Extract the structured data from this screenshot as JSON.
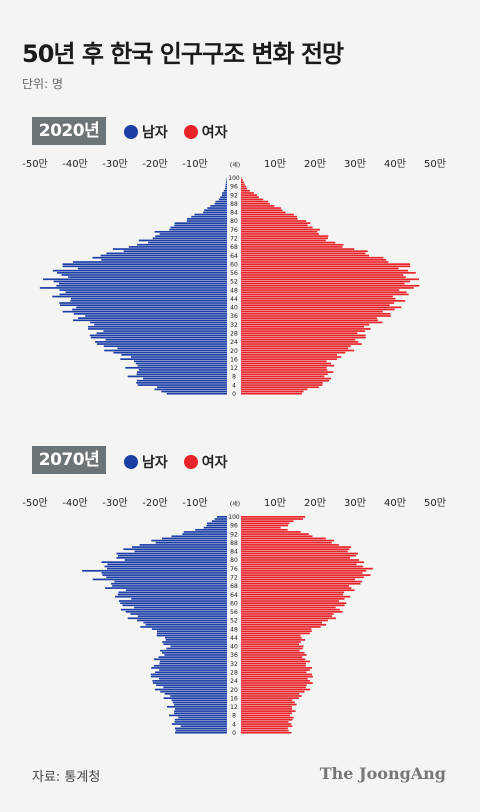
{
  "title": "50년 후 한국 인구구조 변화 전망",
  "unit": "단위: 명",
  "legend": {
    "male": "남자",
    "female": "여자"
  },
  "colors": {
    "male": "#1c3fa6",
    "female": "#e8232a",
    "badge": "#6c7478"
  },
  "source": "자료: 통계청",
  "brand": "The JoongAng",
  "chart_data": [
    {
      "type": "bar",
      "label": "2020년",
      "x_ticks": [
        "-50만",
        "-40만",
        "-30만",
        "-20만",
        "-10만",
        "(세)",
        "10만",
        "20만",
        "30만",
        "40만",
        "50만"
      ],
      "xlim": [
        -500000,
        500000
      ],
      "age_ticks": [
        "100",
        "96",
        "92",
        "88",
        "84",
        "80",
        "76",
        "72",
        "68",
        "64",
        "60",
        "56",
        "52",
        "48",
        "44",
        "40",
        "36",
        "32",
        "28",
        "24",
        "20",
        "16",
        "12",
        "8",
        "4",
        "0"
      ],
      "age_keypoints": [
        [
          0,
          145000,
          145000
        ],
        [
          5,
          225000,
          215000
        ],
        [
          10,
          230000,
          220000
        ],
        [
          15,
          235000,
          225000
        ],
        [
          20,
          290000,
          270000
        ],
        [
          25,
          330000,
          300000
        ],
        [
          30,
          330000,
          310000
        ],
        [
          35,
          370000,
          355000
        ],
        [
          40,
          400000,
          385000
        ],
        [
          45,
          410000,
          395000
        ],
        [
          50,
          440000,
          430000
        ],
        [
          55,
          420000,
          420000
        ],
        [
          60,
          400000,
          410000
        ],
        [
          63,
          320000,
          340000
        ],
        [
          65,
          300000,
          320000
        ],
        [
          70,
          210000,
          230000
        ],
        [
          75,
          165000,
          195000
        ],
        [
          80,
          110000,
          160000
        ],
        [
          85,
          55000,
          105000
        ],
        [
          90,
          20000,
          55000
        ],
        [
          95,
          5000,
          15000
        ],
        [
          100,
          500,
          1500
        ]
      ]
    },
    {
      "type": "bar",
      "label": "2070년",
      "x_ticks": [
        "-50만",
        "-40만",
        "-30만",
        "-20만",
        "-10만",
        "(세)",
        "10만",
        "20만",
        "30만",
        "40만",
        "50만"
      ],
      "xlim": [
        -500000,
        500000
      ],
      "age_ticks": [
        "100",
        "96",
        "92",
        "88",
        "84",
        "80",
        "76",
        "72",
        "68",
        "64",
        "60",
        "56",
        "52",
        "48",
        "44",
        "40",
        "36",
        "32",
        "28",
        "24",
        "20",
        "16",
        "12",
        "8",
        "4",
        "0"
      ],
      "age_keypoints": [
        [
          0,
          125000,
          120000
        ],
        [
          5,
          130000,
          125000
        ],
        [
          10,
          135000,
          130000
        ],
        [
          15,
          140000,
          135000
        ],
        [
          20,
          170000,
          165000
        ],
        [
          25,
          185000,
          175000
        ],
        [
          30,
          180000,
          170000
        ],
        [
          35,
          170000,
          160000
        ],
        [
          40,
          150000,
          150000
        ],
        [
          45,
          165000,
          155000
        ],
        [
          50,
          210000,
          205000
        ],
        [
          55,
          245000,
          240000
        ],
        [
          60,
          260000,
          255000
        ],
        [
          65,
          270000,
          265000
        ],
        [
          70,
          300000,
          295000
        ],
        [
          75,
          330000,
          320000
        ],
        [
          80,
          280000,
          290000
        ],
        [
          85,
          250000,
          275000
        ],
        [
          90,
          160000,
          210000
        ],
        [
          95,
          60000,
          100000
        ],
        [
          100,
          25000,
          160000
        ]
      ]
    }
  ]
}
